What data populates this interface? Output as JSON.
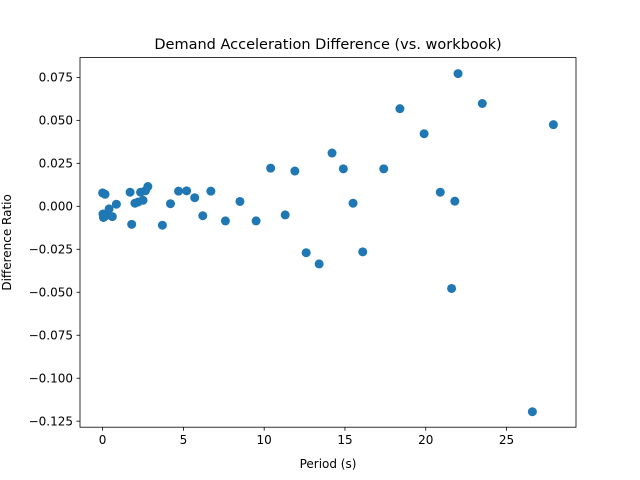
{
  "chart_data": {
    "type": "scatter",
    "title": "Demand Acceleration Difference (vs. workbook)",
    "xlabel": "Period (s)",
    "ylabel": "Difference Ratio",
    "xlim": [
      -1.4,
      29.3
    ],
    "ylim": [
      -0.1285,
      0.0865
    ],
    "xticks": [
      0,
      5,
      10,
      15,
      20,
      25
    ],
    "xtick_labels": [
      "0",
      "5",
      "10",
      "15",
      "20",
      "25"
    ],
    "yticks": [
      0.075,
      0.05,
      0.025,
      0.0,
      -0.025,
      -0.05,
      -0.075,
      -0.1,
      -0.125
    ],
    "ytick_labels": [
      "0.075",
      "0.050",
      "0.025",
      "0.000",
      "−0.025",
      "−0.050",
      "−0.075",
      "−0.100",
      "−0.125"
    ],
    "grid": false,
    "legend": "none",
    "marker_color": "#1f77b4",
    "points": [
      {
        "x": 0.0,
        "y": 0.0078
      },
      {
        "x": 0.02,
        "y": -0.0045
      },
      {
        "x": 0.05,
        "y": -0.0065
      },
      {
        "x": 0.1,
        "y": -0.006
      },
      {
        "x": 0.15,
        "y": 0.007
      },
      {
        "x": 0.2,
        "y": -0.0055
      },
      {
        "x": 0.4,
        "y": -0.0015
      },
      {
        "x": 0.6,
        "y": -0.006
      },
      {
        "x": 0.85,
        "y": 0.0012
      },
      {
        "x": 1.7,
        "y": 0.0082
      },
      {
        "x": 1.8,
        "y": -0.0105
      },
      {
        "x": 2.0,
        "y": 0.0018
      },
      {
        "x": 2.2,
        "y": 0.0025
      },
      {
        "x": 2.35,
        "y": 0.0082
      },
      {
        "x": 2.5,
        "y": 0.0035
      },
      {
        "x": 2.65,
        "y": 0.009
      },
      {
        "x": 2.8,
        "y": 0.0115
      },
      {
        "x": 3.7,
        "y": -0.011
      },
      {
        "x": 4.2,
        "y": 0.0015
      },
      {
        "x": 4.7,
        "y": 0.0088
      },
      {
        "x": 5.2,
        "y": 0.009
      },
      {
        "x": 5.7,
        "y": 0.005
      },
      {
        "x": 6.2,
        "y": -0.0055
      },
      {
        "x": 6.7,
        "y": 0.0088
      },
      {
        "x": 7.6,
        "y": -0.0085
      },
      {
        "x": 8.5,
        "y": 0.0028
      },
      {
        "x": 9.5,
        "y": -0.0085
      },
      {
        "x": 10.4,
        "y": 0.0222
      },
      {
        "x": 11.3,
        "y": -0.005
      },
      {
        "x": 11.9,
        "y": 0.0205
      },
      {
        "x": 12.6,
        "y": -0.027
      },
      {
        "x": 13.4,
        "y": -0.0335
      },
      {
        "x": 14.2,
        "y": 0.031
      },
      {
        "x": 14.9,
        "y": 0.0218
      },
      {
        "x": 15.5,
        "y": 0.0018
      },
      {
        "x": 16.1,
        "y": -0.0265
      },
      {
        "x": 17.4,
        "y": 0.0218
      },
      {
        "x": 18.4,
        "y": 0.0568
      },
      {
        "x": 19.9,
        "y": 0.0422
      },
      {
        "x": 20.9,
        "y": 0.0082
      },
      {
        "x": 21.6,
        "y": -0.0478
      },
      {
        "x": 21.8,
        "y": 0.003
      },
      {
        "x": 22.0,
        "y": 0.0772
      },
      {
        "x": 23.5,
        "y": 0.0598
      },
      {
        "x": 26.6,
        "y": -0.1195
      },
      {
        "x": 27.9,
        "y": 0.0475
      }
    ]
  }
}
